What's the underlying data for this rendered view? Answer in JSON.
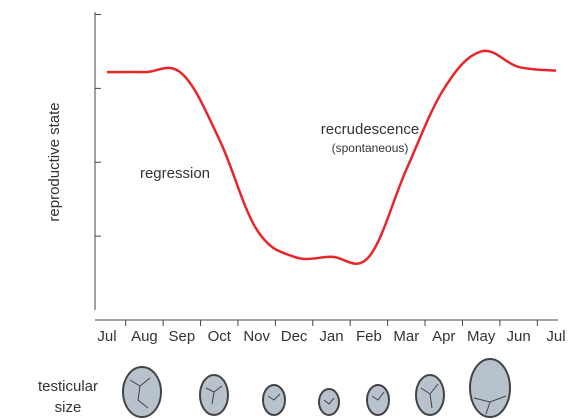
{
  "chart_data": {
    "type": "line",
    "y_label": "reproductive state",
    "categories": [
      "Jul",
      "Aug",
      "Sep",
      "Oct",
      "Nov",
      "Dec",
      "Jan",
      "Feb",
      "Mar",
      "Apr",
      "May",
      "Jun",
      "Jul"
    ],
    "series": [
      {
        "name": "reproductive state",
        "color": "#e8262a",
        "values": [
          3.22,
          3.22,
          3.2,
          2.31,
          1.09,
          0.72,
          0.72,
          0.72,
          1.9,
          2.99,
          3.5,
          3.29,
          3.24
        ]
      }
    ],
    "ylim": [
      0,
      4
    ],
    "yticks": [
      1,
      2,
      3,
      4
    ],
    "annotations": [
      "regression",
      "recrudescence",
      "(spontaneous)"
    ],
    "footer_label": [
      "testicular",
      "size"
    ]
  }
}
